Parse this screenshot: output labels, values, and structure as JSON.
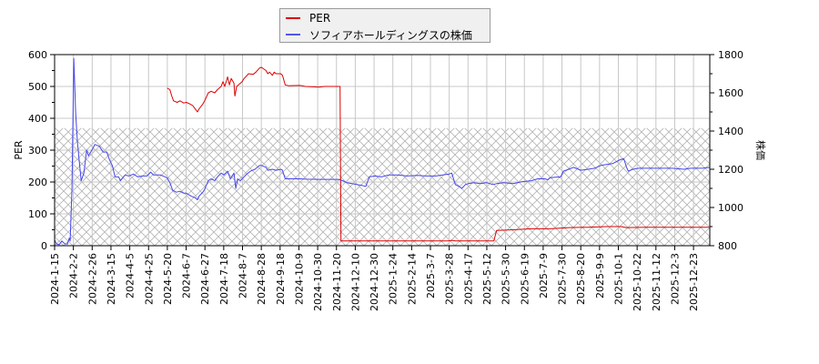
{
  "chart_data": {
    "type": "line",
    "title": "",
    "legend": {
      "position": "top-center",
      "entries": [
        {
          "label": "PER",
          "color": "#dd0000"
        },
        {
          "label": "ソフィアホールディングスの株価",
          "color": "#4444ee"
        }
      ]
    },
    "xlabel": "",
    "ylabel_left": "PER",
    "ylabel_right": "株価",
    "ylim_left": [
      0,
      600
    ],
    "ylim_right": [
      800,
      1800
    ],
    "yticks_left": [
      0,
      100,
      200,
      300,
      400,
      500,
      600
    ],
    "yticks_right": [
      800,
      1000,
      1200,
      1400,
      1600,
      1800
    ],
    "grid": true,
    "hatched_band_right_axis": [
      800,
      1415
    ],
    "x_tick_labels": [
      "2024-1-15",
      "2024-2-2",
      "2024-2-26",
      "2024-3-15",
      "2024-4-5",
      "2024-4-25",
      "2024-5-20",
      "2024-6-7",
      "2024-6-27",
      "2024-7-18",
      "2024-8-7",
      "2024-8-28",
      "2024-9-18",
      "2024-10-9",
      "2024-10-30",
      "2024-11-20",
      "2024-12-10",
      "2024-12-30",
      "2025-1-24",
      "2025-2-14",
      "2025-3-7",
      "2025-3-28",
      "2025-4-17",
      "2025-5-12",
      "2025-5-30",
      "2025-6-19",
      "2025-7-9",
      "2025-7-30",
      "2025-8-20",
      "2025-9-9",
      "2025-10-1",
      "2025-10-22",
      "2025-11-12",
      "2025-12-3",
      "2025-12-23"
    ],
    "series": [
      {
        "name": "PER",
        "axis": "left",
        "color": "#dd0000",
        "points": [
          [
            "2024-5-17",
            495
          ],
          [
            "2024-5-20",
            490
          ],
          [
            "2024-5-22",
            470
          ],
          [
            "2024-5-24",
            455
          ],
          [
            "2024-5-28",
            450
          ],
          [
            "2024-5-31",
            455
          ],
          [
            "2024-6-4",
            448
          ],
          [
            "2024-6-7",
            450
          ],
          [
            "2024-6-11",
            445
          ],
          [
            "2024-6-14",
            440
          ],
          [
            "2024-6-17",
            428
          ],
          [
            "2024-6-19",
            420
          ],
          [
            "2024-6-21",
            430
          ],
          [
            "2024-6-25",
            445
          ],
          [
            "2024-6-27",
            455
          ],
          [
            "2024-7-1",
            480
          ],
          [
            "2024-7-4",
            485
          ],
          [
            "2024-7-8",
            480
          ],
          [
            "2024-7-11",
            490
          ],
          [
            "2024-7-15",
            500
          ],
          [
            "2024-7-17",
            515
          ],
          [
            "2024-7-19",
            500
          ],
          [
            "2024-7-22",
            530
          ],
          [
            "2024-7-24",
            505
          ],
          [
            "2024-7-26",
            525
          ],
          [
            "2024-7-29",
            510
          ],
          [
            "2024-7-30",
            470
          ],
          [
            "2024-8-1",
            500
          ],
          [
            "2024-8-5",
            510
          ],
          [
            "2024-8-7",
            515
          ],
          [
            "2024-8-9",
            525
          ],
          [
            "2024-8-14",
            540
          ],
          [
            "2024-8-19",
            538
          ],
          [
            "2024-8-22",
            545
          ],
          [
            "2024-8-26",
            558
          ],
          [
            "2024-8-28",
            560
          ],
          [
            "2024-9-2",
            550
          ],
          [
            "2024-9-4",
            540
          ],
          [
            "2024-9-6",
            545
          ],
          [
            "2024-9-9",
            535
          ],
          [
            "2024-9-11",
            545
          ],
          [
            "2024-9-13",
            540
          ],
          [
            "2024-9-18",
            540
          ],
          [
            "2024-9-20",
            535
          ],
          [
            "2024-9-23",
            505
          ],
          [
            "2024-9-27",
            502
          ],
          [
            "2024-10-9",
            503
          ],
          [
            "2024-10-15",
            500
          ],
          [
            "2024-10-30",
            498
          ],
          [
            "2024-11-5",
            500
          ],
          [
            "2024-11-10",
            500
          ],
          [
            "2024-11-22",
            500
          ],
          [
            "2024-11-23",
            15
          ],
          [
            "2024-12-10",
            15
          ],
          [
            "2025-1-24",
            15
          ],
          [
            "2025-3-7",
            15
          ],
          [
            "2025-3-20",
            15
          ],
          [
            "2025-3-24",
            17
          ],
          [
            "2025-3-28",
            15
          ],
          [
            "2025-4-17",
            15
          ],
          [
            "2025-5-9",
            15
          ],
          [
            "2025-5-12",
            48
          ],
          [
            "2025-5-30",
            50
          ],
          [
            "2025-6-19",
            53
          ],
          [
            "2025-7-9",
            53
          ],
          [
            "2025-7-20",
            55
          ],
          [
            "2025-7-30",
            57
          ],
          [
            "2025-8-20",
            58
          ],
          [
            "2025-9-9",
            60
          ],
          [
            "2025-9-25",
            60
          ],
          [
            "2025-10-1",
            57
          ],
          [
            "2025-10-22",
            58
          ],
          [
            "2025-11-12",
            58
          ],
          [
            "2025-12-3",
            58
          ],
          [
            "2025-12-23",
            58
          ],
          [
            "2025-12-30",
            58
          ]
        ]
      },
      {
        "name": "ソフィアホールディングスの株価",
        "axis": "right",
        "color": "#4444ee",
        "points": [
          [
            "2024-1-15",
            830
          ],
          [
            "2024-1-17",
            810
          ],
          [
            "2024-1-20",
            805
          ],
          [
            "2024-1-23",
            825
          ],
          [
            "2024-1-26",
            810
          ],
          [
            "2024-1-29",
            808
          ],
          [
            "2024-1-31",
            840
          ],
          [
            "2024-2-1",
            825
          ],
          [
            "2024-2-3",
            1100
          ],
          [
            "2024-2-5",
            1780
          ],
          [
            "2024-2-7",
            1500
          ],
          [
            "2024-2-9",
            1340
          ],
          [
            "2024-2-13",
            1140
          ],
          [
            "2024-2-16",
            1180
          ],
          [
            "2024-2-19",
            1300
          ],
          [
            "2024-2-21",
            1270
          ],
          [
            "2024-2-26",
            1310
          ],
          [
            "2024-2-28",
            1330
          ],
          [
            "2024-3-4",
            1320
          ],
          [
            "2024-3-8",
            1290
          ],
          [
            "2024-3-12",
            1290
          ],
          [
            "2024-3-15",
            1250
          ],
          [
            "2024-3-18",
            1220
          ],
          [
            "2024-3-21",
            1160
          ],
          [
            "2024-3-25",
            1160
          ],
          [
            "2024-3-27",
            1140
          ],
          [
            "2024-4-1",
            1170
          ],
          [
            "2024-4-5",
            1165
          ],
          [
            "2024-4-10",
            1175
          ],
          [
            "2024-4-15",
            1160
          ],
          [
            "2024-4-20",
            1165
          ],
          [
            "2024-4-25",
            1165
          ],
          [
            "2024-4-29",
            1185
          ],
          [
            "2024-5-2",
            1170
          ],
          [
            "2024-5-10",
            1170
          ],
          [
            "2024-5-17",
            1155
          ],
          [
            "2024-5-20",
            1130
          ],
          [
            "2024-5-23",
            1090
          ],
          [
            "2024-5-27",
            1080
          ],
          [
            "2024-5-31",
            1085
          ],
          [
            "2024-6-4",
            1075
          ],
          [
            "2024-6-7",
            1075
          ],
          [
            "2024-6-12",
            1060
          ],
          [
            "2024-6-17",
            1050
          ],
          [
            "2024-6-19",
            1040
          ],
          [
            "2024-6-21",
            1060
          ],
          [
            "2024-6-25",
            1080
          ],
          [
            "2024-6-27",
            1095
          ],
          [
            "2024-7-1",
            1140
          ],
          [
            "2024-7-4",
            1150
          ],
          [
            "2024-7-8",
            1140
          ],
          [
            "2024-7-11",
            1160
          ],
          [
            "2024-7-15",
            1180
          ],
          [
            "2024-7-18",
            1170
          ],
          [
            "2024-7-22",
            1190
          ],
          [
            "2024-7-25",
            1150
          ],
          [
            "2024-7-29",
            1180
          ],
          [
            "2024-7-31",
            1100
          ],
          [
            "2024-8-2",
            1150
          ],
          [
            "2024-8-5",
            1140
          ],
          [
            "2024-8-7",
            1150
          ],
          [
            "2024-8-12",
            1175
          ],
          [
            "2024-8-16",
            1190
          ],
          [
            "2024-8-21",
            1200
          ],
          [
            "2024-8-26",
            1220
          ],
          [
            "2024-8-28",
            1220
          ],
          [
            "2024-9-2",
            1210
          ],
          [
            "2024-9-4",
            1195
          ],
          [
            "2024-9-9",
            1200
          ],
          [
            "2024-9-13",
            1195
          ],
          [
            "2024-9-18",
            1200
          ],
          [
            "2024-9-20",
            1195
          ],
          [
            "2024-9-23",
            1150
          ],
          [
            "2024-9-27",
            1150
          ],
          [
            "2024-10-9",
            1150
          ],
          [
            "2024-10-15",
            1148
          ],
          [
            "2024-10-30",
            1147
          ],
          [
            "2024-11-10",
            1147
          ],
          [
            "2024-11-20",
            1147
          ],
          [
            "2024-11-25",
            1140
          ],
          [
            "2024-11-29",
            1130
          ],
          [
            "2024-12-5",
            1125
          ],
          [
            "2024-12-10",
            1120
          ],
          [
            "2024-12-16",
            1115
          ],
          [
            "2024-12-20",
            1110
          ],
          [
            "2024-12-24",
            1160
          ],
          [
            "2024-12-30",
            1165
          ],
          [
            "2025-1-6",
            1160
          ],
          [
            "2025-1-14",
            1170
          ],
          [
            "2025-1-24",
            1170
          ],
          [
            "2025-2-3",
            1165
          ],
          [
            "2025-2-14",
            1168
          ],
          [
            "2025-2-24",
            1165
          ],
          [
            "2025-3-7",
            1165
          ],
          [
            "2025-3-14",
            1170
          ],
          [
            "2025-3-21",
            1175
          ],
          [
            "2025-3-24",
            1180
          ],
          [
            "2025-3-26",
            1150
          ],
          [
            "2025-3-28",
            1120
          ],
          [
            "2025-4-1",
            1110
          ],
          [
            "2025-4-4",
            1100
          ],
          [
            "2025-4-8",
            1120
          ],
          [
            "2025-4-11",
            1125
          ],
          [
            "2025-4-17",
            1130
          ],
          [
            "2025-4-24",
            1125
          ],
          [
            "2025-5-1",
            1130
          ],
          [
            "2025-5-8",
            1120
          ],
          [
            "2025-5-12",
            1125
          ],
          [
            "2025-5-20",
            1130
          ],
          [
            "2025-5-30",
            1125
          ],
          [
            "2025-6-9",
            1135
          ],
          [
            "2025-6-19",
            1140
          ],
          [
            "2025-6-26",
            1150
          ],
          [
            "2025-7-4",
            1150
          ],
          [
            "2025-7-7",
            1145
          ],
          [
            "2025-7-9",
            1155
          ],
          [
            "2025-7-15",
            1158
          ],
          [
            "2025-7-21",
            1160
          ],
          [
            "2025-7-24",
            1190
          ],
          [
            "2025-7-30",
            1200
          ],
          [
            "2025-8-4",
            1210
          ],
          [
            "2025-8-12",
            1195
          ],
          [
            "2025-8-20",
            1200
          ],
          [
            "2025-8-27",
            1205
          ],
          [
            "2025-9-3",
            1220
          ],
          [
            "2025-9-9",
            1225
          ],
          [
            "2025-9-16",
            1230
          ],
          [
            "2025-9-24",
            1250
          ],
          [
            "2025-9-28",
            1255
          ],
          [
            "2025-10-1",
            1210
          ],
          [
            "2025-10-3",
            1190
          ],
          [
            "2025-10-8",
            1200
          ],
          [
            "2025-10-14",
            1205
          ],
          [
            "2025-10-22",
            1205
          ],
          [
            "2025-11-1",
            1205
          ],
          [
            "2025-11-12",
            1205
          ],
          [
            "2025-11-20",
            1205
          ],
          [
            "2025-12-3",
            1200
          ],
          [
            "2025-12-10",
            1205
          ],
          [
            "2025-12-23",
            1205
          ],
          [
            "2025-12-31",
            1210
          ]
        ]
      }
    ]
  }
}
